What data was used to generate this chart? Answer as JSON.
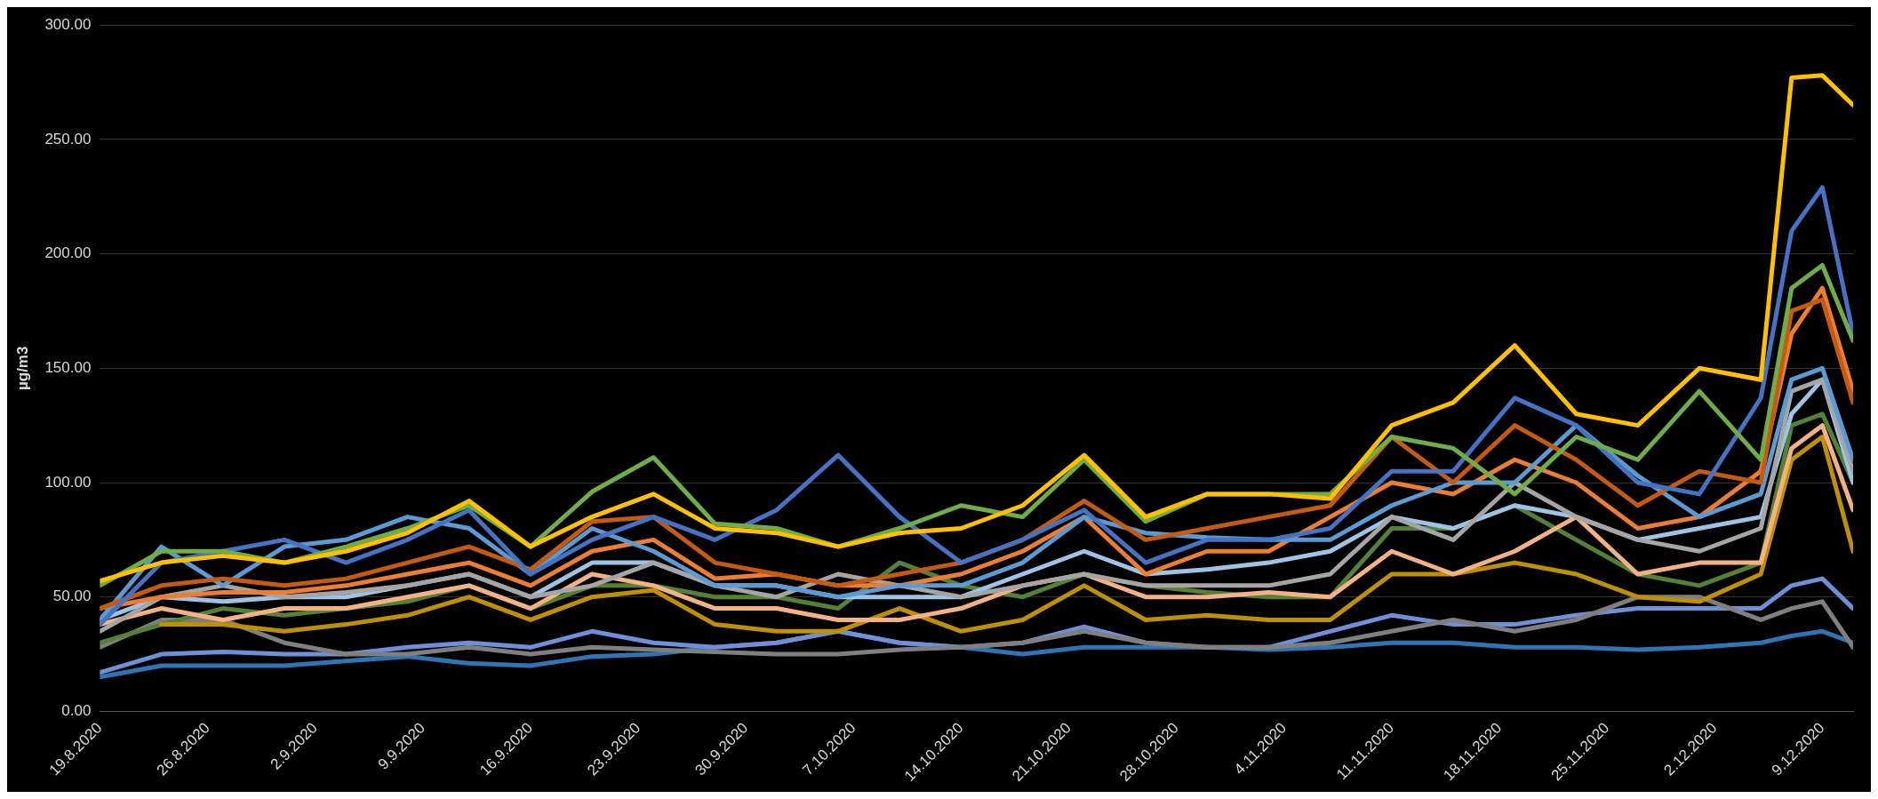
{
  "chart_data": {
    "type": "line",
    "ylabel": "µg/m3",
    "x": [
      "2020-08-19",
      "2020-08-23",
      "2020-08-27",
      "2020-08-31",
      "2020-09-04",
      "2020-09-08",
      "2020-09-12",
      "2020-09-16",
      "2020-09-20",
      "2020-09-24",
      "2020-09-28",
      "2020-10-02",
      "2020-10-06",
      "2020-10-10",
      "2020-10-14",
      "2020-10-18",
      "2020-10-22",
      "2020-10-26",
      "2020-10-30",
      "2020-11-03",
      "2020-11-07",
      "2020-11-11",
      "2020-11-15",
      "2020-11-19",
      "2020-11-23",
      "2020-11-27",
      "2020-12-01",
      "2020-12-05",
      "2020-12-07",
      "2020-12-09",
      "2020-12-11"
    ],
    "xlim": [
      "2020-08-19",
      "2020-12-11"
    ],
    "xticks": [
      {
        "value": "2020-08-19",
        "label": "19.8.2020"
      },
      {
        "value": "2020-08-26",
        "label": "26.8.2020"
      },
      {
        "value": "2020-09-02",
        "label": "2.9.2020"
      },
      {
        "value": "2020-09-09",
        "label": "9.9.2020"
      },
      {
        "value": "2020-09-16",
        "label": "16.9.2020"
      },
      {
        "value": "2020-09-23",
        "label": "23.9.2020"
      },
      {
        "value": "2020-09-30",
        "label": "30.9.2020"
      },
      {
        "value": "2020-10-07",
        "label": "7.10.2020"
      },
      {
        "value": "2020-10-14",
        "label": "14.10.2020"
      },
      {
        "value": "2020-10-21",
        "label": "21.10.2020"
      },
      {
        "value": "2020-10-28",
        "label": "28.10.2020"
      },
      {
        "value": "2020-11-04",
        "label": "4.11.2020"
      },
      {
        "value": "2020-11-11",
        "label": "11.11.2020"
      },
      {
        "value": "2020-11-18",
        "label": "18.11.2020"
      },
      {
        "value": "2020-11-25",
        "label": "25.11.2020"
      },
      {
        "value": "2020-12-02",
        "label": "2.12.2020"
      },
      {
        "value": "2020-12-09",
        "label": "9.12.2020"
      }
    ],
    "ylim": [
      0,
      300
    ],
    "yticks": [
      {
        "value": 0,
        "label": "0.00"
      },
      {
        "value": 50,
        "label": "50.00"
      },
      {
        "value": 100,
        "label": "100.00"
      },
      {
        "value": 150,
        "label": "150.00"
      },
      {
        "value": 200,
        "label": "200.00"
      },
      {
        "value": 250,
        "label": "250.00"
      },
      {
        "value": 300,
        "label": "300.00"
      }
    ],
    "grid": "y",
    "legend": false,
    "marker": "none",
    "line_style": "solid",
    "series": [
      {
        "color": "#ffc000",
        "values": [
          57,
          65,
          68,
          65,
          70,
          78,
          92,
          72,
          85,
          95,
          80,
          78,
          72,
          78,
          80,
          90,
          112,
          85,
          95,
          95,
          93,
          125,
          135,
          160,
          130,
          125,
          150,
          145,
          277,
          278,
          265
        ]
      },
      {
        "color": "#70ad47",
        "values": [
          55,
          70,
          70,
          65,
          72,
          80,
          90,
          72,
          96,
          111,
          82,
          80,
          72,
          80,
          90,
          85,
          110,
          83,
          95,
          95,
          95,
          120,
          115,
          95,
          120,
          110,
          140,
          110,
          185,
          195,
          162
        ]
      },
      {
        "color": "#4472c4",
        "values": [
          38,
          65,
          70,
          75,
          65,
          75,
          88,
          60,
          75,
          85,
          75,
          88,
          112,
          85,
          65,
          75,
          88,
          65,
          75,
          75,
          80,
          105,
          105,
          137,
          125,
          100,
          95,
          137,
          210,
          229,
          165
        ]
      },
      {
        "color": "#c55a11",
        "values": [
          45,
          55,
          58,
          55,
          58,
          65,
          72,
          62,
          83,
          85,
          65,
          60,
          55,
          60,
          65,
          75,
          92,
          75,
          80,
          85,
          90,
          120,
          100,
          125,
          110,
          90,
          105,
          100,
          175,
          180,
          135
        ]
      },
      {
        "color": "#5b9bd5",
        "values": [
          40,
          72,
          55,
          72,
          75,
          85,
          80,
          60,
          80,
          70,
          55,
          55,
          50,
          55,
          55,
          65,
          85,
          78,
          76,
          75,
          75,
          90,
          100,
          100,
          125,
          103,
          85,
          95,
          145,
          150,
          110
        ]
      },
      {
        "color": "#ed7d31",
        "values": [
          45,
          50,
          52,
          52,
          55,
          60,
          65,
          55,
          70,
          75,
          58,
          60,
          55,
          55,
          60,
          70,
          85,
          60,
          70,
          70,
          85,
          100,
          95,
          110,
          100,
          80,
          85,
          105,
          165,
          185,
          140
        ]
      },
      {
        "color": "#a5a5a5",
        "values": [
          35,
          50,
          55,
          50,
          52,
          55,
          60,
          50,
          55,
          65,
          55,
          50,
          60,
          55,
          50,
          55,
          60,
          55,
          55,
          55,
          60,
          85,
          75,
          100,
          85,
          75,
          70,
          80,
          140,
          145,
          105
        ]
      },
      {
        "color": "#f4b183",
        "values": [
          38,
          45,
          40,
          45,
          45,
          50,
          55,
          45,
          60,
          55,
          45,
          45,
          40,
          40,
          45,
          55,
          60,
          50,
          50,
          52,
          50,
          70,
          60,
          70,
          85,
          60,
          65,
          65,
          115,
          125,
          88
        ]
      },
      {
        "color": "#9dc3e6",
        "values": [
          40,
          50,
          48,
          50,
          50,
          55,
          60,
          50,
          65,
          65,
          55,
          55,
          50,
          50,
          50,
          60,
          70,
          60,
          62,
          65,
          70,
          85,
          80,
          90,
          85,
          75,
          80,
          85,
          130,
          145,
          100
        ]
      },
      {
        "color": "#bf9000",
        "values": [
          null,
          38,
          38,
          35,
          38,
          42,
          50,
          40,
          50,
          53,
          38,
          35,
          35,
          45,
          35,
          40,
          55,
          40,
          42,
          40,
          40,
          60,
          60,
          65,
          60,
          50,
          48,
          60,
          110,
          120,
          70
        ]
      },
      {
        "color": "#548235",
        "values": [
          30,
          38,
          45,
          42,
          45,
          48,
          55,
          45,
          55,
          55,
          50,
          50,
          45,
          65,
          55,
          50,
          60,
          55,
          52,
          50,
          50,
          80,
          80,
          90,
          75,
          60,
          55,
          65,
          125,
          130,
          100
        ]
      },
      {
        "color": "#7f7f7f",
        "values": [
          28,
          40,
          40,
          30,
          25,
          25,
          28,
          25,
          28,
          27,
          26,
          25,
          25,
          27,
          28,
          30,
          35,
          30,
          28,
          28,
          30,
          35,
          40,
          35,
          40,
          50,
          50,
          40,
          45,
          48,
          28
        ]
      },
      {
        "color": "#6f8fd8",
        "values": [
          17,
          25,
          26,
          25,
          25,
          28,
          30,
          28,
          35,
          30,
          28,
          30,
          35,
          30,
          28,
          30,
          37,
          30,
          28,
          28,
          35,
          42,
          38,
          38,
          42,
          45,
          45,
          45,
          55,
          58,
          45
        ]
      },
      {
        "color": "#2e75b6",
        "values": [
          15,
          20,
          20,
          20,
          22,
          24,
          21,
          20,
          24,
          25,
          28,
          30,
          35,
          30,
          28,
          25,
          28,
          28,
          28,
          27,
          28,
          30,
          30,
          28,
          28,
          27,
          28,
          30,
          33,
          35,
          30
        ]
      }
    ]
  }
}
